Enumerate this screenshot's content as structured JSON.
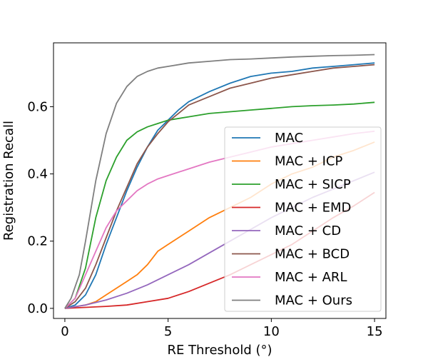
{
  "chart_data": {
    "type": "line",
    "title": "",
    "xlabel": "RE Threshold (°)",
    "ylabel": "Registration Recall",
    "xlim": [
      -0.55,
      15.55
    ],
    "ylim": [
      -0.03,
      0.79
    ],
    "xticks": [
      0,
      5,
      10,
      15
    ],
    "xtick_labels": [
      "0",
      "5",
      "10",
      "15"
    ],
    "yticks": [
      0.0,
      0.2,
      0.4,
      0.6
    ],
    "ytick_labels": [
      "0.0",
      "0.2",
      "0.4",
      "0.6"
    ],
    "grid": false,
    "legend_position": "lower-right",
    "series": [
      {
        "name": "MAC",
        "color": "#1f77b4",
        "x": [
          0,
          0.5,
          1,
          1.5,
          2,
          2.5,
          3,
          3.5,
          4,
          4.5,
          5,
          5.5,
          6,
          7,
          8,
          9,
          10,
          11,
          12,
          13,
          14,
          15
        ],
        "y": [
          0,
          0.01,
          0.04,
          0.1,
          0.19,
          0.27,
          0.35,
          0.42,
          0.48,
          0.53,
          0.56,
          0.59,
          0.615,
          0.645,
          0.67,
          0.69,
          0.7,
          0.705,
          0.715,
          0.72,
          0.725,
          0.73
        ]
      },
      {
        "name": "MAC + ICP",
        "color": "#ff7f0e",
        "x": [
          0,
          0.5,
          1,
          1.5,
          2,
          2.5,
          3,
          3.5,
          4,
          4.5,
          5,
          6,
          7,
          8,
          9,
          10,
          11,
          12,
          13,
          14,
          15
        ],
        "y": [
          0,
          0.005,
          0.01,
          0.02,
          0.04,
          0.06,
          0.08,
          0.1,
          0.13,
          0.17,
          0.19,
          0.23,
          0.27,
          0.3,
          0.33,
          0.37,
          0.4,
          0.42,
          0.45,
          0.47,
          0.495
        ]
      },
      {
        "name": "MAC + SICP",
        "color": "#2ca02c",
        "x": [
          0,
          0.5,
          1,
          1.5,
          2,
          2.5,
          3,
          3.5,
          4,
          4.5,
          5,
          6,
          7,
          8,
          9,
          10,
          11,
          12,
          13,
          14,
          15
        ],
        "y": [
          0,
          0.03,
          0.12,
          0.27,
          0.38,
          0.45,
          0.5,
          0.525,
          0.54,
          0.55,
          0.56,
          0.57,
          0.58,
          0.585,
          0.59,
          0.595,
          0.6,
          0.603,
          0.605,
          0.608,
          0.613
        ]
      },
      {
        "name": "MAC + EMD",
        "color": "#d62728",
        "x": [
          0,
          1,
          2,
          3,
          4,
          5,
          6,
          7,
          8,
          9,
          10,
          11,
          12,
          13,
          14,
          15
        ],
        "y": [
          0,
          0.003,
          0.006,
          0.01,
          0.02,
          0.03,
          0.05,
          0.075,
          0.1,
          0.13,
          0.16,
          0.19,
          0.23,
          0.27,
          0.305,
          0.345
        ]
      },
      {
        "name": "MAC + CD",
        "color": "#9467bd",
        "x": [
          0,
          1,
          2,
          3,
          4,
          5,
          6,
          7,
          8,
          9,
          10,
          11,
          12,
          13,
          14,
          15
        ],
        "y": [
          0,
          0.01,
          0.025,
          0.045,
          0.07,
          0.1,
          0.13,
          0.165,
          0.2,
          0.235,
          0.27,
          0.3,
          0.33,
          0.355,
          0.38,
          0.405
        ]
      },
      {
        "name": "MAC + BCD",
        "color": "#8c564b",
        "x": [
          0,
          0.5,
          1,
          1.5,
          2,
          2.5,
          3,
          3.5,
          4,
          4.5,
          5,
          5.5,
          6,
          7,
          8,
          9,
          10,
          11,
          12,
          13,
          14,
          15
        ],
        "y": [
          0,
          0.02,
          0.06,
          0.13,
          0.21,
          0.29,
          0.36,
          0.43,
          0.48,
          0.52,
          0.555,
          0.58,
          0.605,
          0.63,
          0.655,
          0.67,
          0.685,
          0.695,
          0.705,
          0.715,
          0.72,
          0.725
        ]
      },
      {
        "name": "MAC + ARL",
        "color": "#e377c2",
        "x": [
          0,
          0.5,
          1,
          1.5,
          2,
          2.5,
          3,
          3.5,
          4,
          4.5,
          5,
          6,
          7,
          8,
          9,
          10,
          11,
          12,
          13,
          14,
          15
        ],
        "y": [
          0,
          0.03,
          0.1,
          0.17,
          0.24,
          0.29,
          0.32,
          0.35,
          0.37,
          0.385,
          0.395,
          0.415,
          0.435,
          0.45,
          0.465,
          0.48,
          0.49,
          0.5,
          0.51,
          0.52,
          0.527
        ]
      },
      {
        "name": "MAC + Ours",
        "color": "#7f7f7f",
        "x": [
          0,
          0.3,
          0.7,
          1,
          1.5,
          2,
          2.5,
          3,
          3.5,
          4,
          4.5,
          5,
          6,
          7,
          8,
          9,
          10,
          11,
          12,
          13,
          14,
          15
        ],
        "y": [
          0,
          0.03,
          0.1,
          0.2,
          0.38,
          0.52,
          0.61,
          0.66,
          0.69,
          0.705,
          0.715,
          0.72,
          0.73,
          0.735,
          0.74,
          0.742,
          0.745,
          0.748,
          0.75,
          0.752,
          0.753,
          0.755
        ]
      }
    ]
  }
}
